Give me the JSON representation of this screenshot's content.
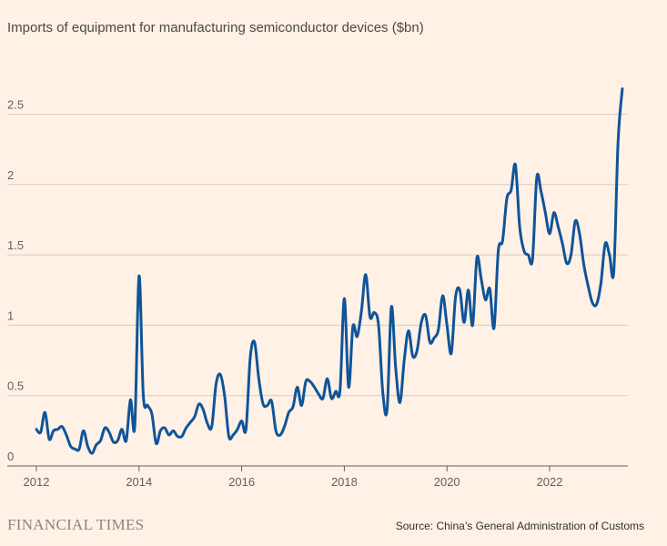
{
  "title": "Imports of equipment for manufacturing semiconductor devices ($bn)",
  "footer": {
    "brand": "FINANCIAL TIMES",
    "source": "Source: China’s General Administration of Customs"
  },
  "colors": {
    "background": "#fff1e5",
    "line": "#0f5499",
    "grid": "#d9cbbf"
  },
  "chart_data": {
    "type": "line",
    "title": "Imports of equipment for manufacturing semiconductor devices ($bn)",
    "xlabel": "",
    "ylabel": "",
    "frequency": "monthly",
    "start": "2012-01",
    "xlim": [
      2012,
      2023.6
    ],
    "ylim": [
      0,
      2.7
    ],
    "grid": true,
    "x_ticks": [
      "2012",
      "2014",
      "2016",
      "2018",
      "2020",
      "2022"
    ],
    "y_ticks": [
      "0",
      "0.5",
      "1",
      "1.5",
      "2",
      "2.5"
    ],
    "values": [
      0.26,
      0.24,
      0.38,
      0.19,
      0.25,
      0.26,
      0.28,
      0.22,
      0.14,
      0.12,
      0.12,
      0.25,
      0.14,
      0.09,
      0.15,
      0.18,
      0.27,
      0.24,
      0.17,
      0.18,
      0.26,
      0.18,
      0.47,
      0.28,
      1.35,
      0.5,
      0.43,
      0.37,
      0.16,
      0.25,
      0.27,
      0.22,
      0.25,
      0.21,
      0.21,
      0.27,
      0.31,
      0.35,
      0.44,
      0.4,
      0.3,
      0.28,
      0.58,
      0.65,
      0.5,
      0.21,
      0.22,
      0.26,
      0.32,
      0.26,
      0.77,
      0.88,
      0.62,
      0.44,
      0.43,
      0.46,
      0.25,
      0.22,
      0.28,
      0.38,
      0.42,
      0.56,
      0.43,
      0.6,
      0.6,
      0.56,
      0.51,
      0.48,
      0.62,
      0.48,
      0.53,
      0.54,
      1.19,
      0.56,
      0.99,
      0.92,
      1.1,
      1.36,
      1.06,
      1.09,
      1.0,
      0.52,
      0.4,
      1.13,
      0.7,
      0.45,
      0.75,
      0.96,
      0.78,
      0.82,
      1.02,
      1.07,
      0.88,
      0.91,
      0.97,
      1.21,
      1.0,
      0.8,
      1.2,
      1.25,
      1.02,
      1.25,
      1.0,
      1.48,
      1.33,
      1.18,
      1.26,
      0.98,
      1.53,
      1.6,
      1.9,
      1.96,
      2.14,
      1.7,
      1.53,
      1.5,
      1.47,
      2.05,
      1.95,
      1.8,
      1.65,
      1.8,
      1.7,
      1.58,
      1.44,
      1.5,
      1.74,
      1.65,
      1.43,
      1.28,
      1.16,
      1.15,
      1.3,
      1.58,
      1.5,
      1.38,
      2.3,
      2.68
    ]
  }
}
